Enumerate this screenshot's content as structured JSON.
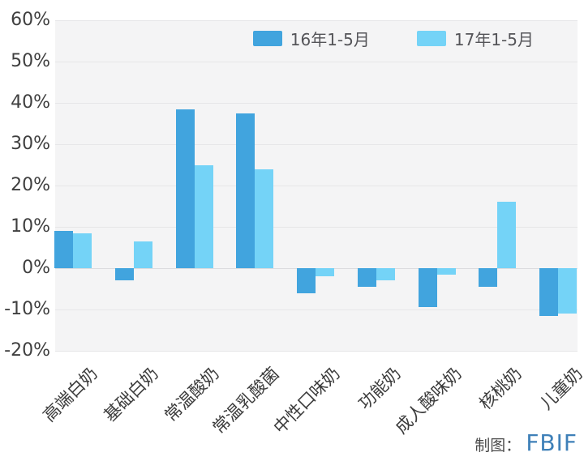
{
  "legend": {
    "items": [
      {
        "label": "16年1-5月",
        "color": "#41a4de"
      },
      {
        "label": "17年1-5月",
        "color": "#74d3f7"
      }
    ]
  },
  "y_axis": {
    "tick_labels": [
      "60%",
      "50%",
      "40%",
      "30%",
      "20%",
      "10%",
      "0%",
      "-10%",
      "-20%"
    ]
  },
  "credit": {
    "label": "制图：",
    "brand": "FBIF",
    "brand_color": "#3e80b8"
  },
  "chart_data": {
    "type": "bar",
    "categories": [
      "高端白奶",
      "基础白奶",
      "常温酸奶",
      "常温乳酸菌",
      "中性口味奶",
      "功能奶",
      "成人酸味奶",
      "核桃奶",
      "儿童奶"
    ],
    "series": [
      {
        "name": "16年1-5月",
        "color": "#41a4de",
        "values": [
          9,
          -3,
          38.5,
          37.5,
          -6,
          -4.5,
          -9.5,
          -4.5,
          -11.5
        ]
      },
      {
        "name": "17年1-5月",
        "color": "#74d3f7",
        "values": [
          8.5,
          6.5,
          25,
          24,
          -2,
          -3,
          -1.5,
          16,
          -11
        ]
      }
    ],
    "title": "",
    "xlabel": "",
    "ylabel": "",
    "ylim": [
      -20,
      60
    ],
    "ytick_step": 10,
    "ytick_suffix": "%",
    "grid": true,
    "plot_background": "#f4f4f5",
    "legend_position": "top-right"
  }
}
